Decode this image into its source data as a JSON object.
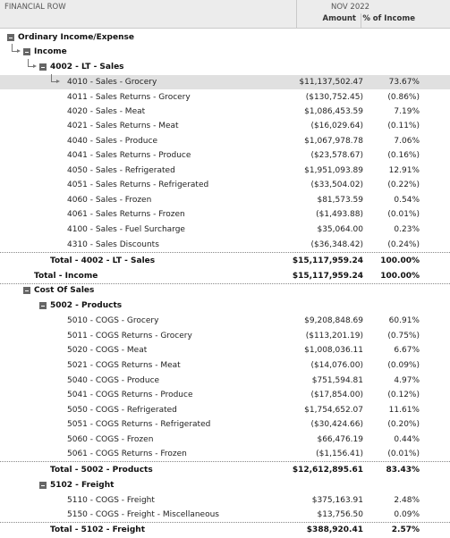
{
  "header": {
    "col_label": "FINANCIAL ROW",
    "period": "NOV 2022",
    "amount": "Amount",
    "percent": "% of Income"
  },
  "rows": [
    {
      "label": "Ordinary Income/Expense",
      "amount": "",
      "pct": ""
    },
    {
      "label": "Income",
      "amount": "",
      "pct": ""
    },
    {
      "label": "4002 - LT - Sales",
      "amount": "",
      "pct": ""
    },
    {
      "label": "4010 - Sales - Grocery",
      "amount": "$11,137,502.47",
      "pct": "73.67%"
    },
    {
      "label": "4011 - Sales Returns - Grocery",
      "amount": "($130,752.45)",
      "pct": "(0.86%)"
    },
    {
      "label": "4020 - Sales - Meat",
      "amount": "$1,086,453.59",
      "pct": "7.19%"
    },
    {
      "label": "4021 - Sales Returns - Meat",
      "amount": "($16,029.64)",
      "pct": "(0.11%)"
    },
    {
      "label": "4040 - Sales - Produce",
      "amount": "$1,067,978.78",
      "pct": "7.06%"
    },
    {
      "label": "4041 - Sales Returns - Produce",
      "amount": "($23,578.67)",
      "pct": "(0.16%)"
    },
    {
      "label": "4050 - Sales - Refrigerated",
      "amount": "$1,951,093.89",
      "pct": "12.91%"
    },
    {
      "label": "4051 - Sales Returns - Refrigerated",
      "amount": "($33,504.02)",
      "pct": "(0.22%)"
    },
    {
      "label": "4060 - Sales - Frozen",
      "amount": "$81,573.59",
      "pct": "0.54%"
    },
    {
      "label": "4061 - Sales Returns - Frozen",
      "amount": "($1,493.88)",
      "pct": "(0.01%)"
    },
    {
      "label": "4100 - Sales - Fuel Surcharge",
      "amount": "$35,064.00",
      "pct": "0.23%"
    },
    {
      "label": "4310 - Sales Discounts",
      "amount": "($36,348.42)",
      "pct": "(0.24%)"
    },
    {
      "label": "Total - 4002 - LT - Sales",
      "amount": "$15,117,959.24",
      "pct": "100.00%"
    },
    {
      "label": "Total - Income",
      "amount": "$15,117,959.24",
      "pct": "100.00%"
    },
    {
      "label": "Cost Of Sales",
      "amount": "",
      "pct": ""
    },
    {
      "label": "5002 - Products",
      "amount": "",
      "pct": ""
    },
    {
      "label": "5010 - COGS - Grocery",
      "amount": "$9,208,848.69",
      "pct": "60.91%"
    },
    {
      "label": "5011 - COGS Returns - Grocery",
      "amount": "($113,201.19)",
      "pct": "(0.75%)"
    },
    {
      "label": "5020 - COGS - Meat",
      "amount": "$1,008,036.11",
      "pct": "6.67%"
    },
    {
      "label": "5021 - COGS Returns - Meat",
      "amount": "($14,076.00)",
      "pct": "(0.09%)"
    },
    {
      "label": "5040 - COGS - Produce",
      "amount": "$751,594.81",
      "pct": "4.97%"
    },
    {
      "label": "5041 - COGS Returns - Produce",
      "amount": "($17,854.00)",
      "pct": "(0.12%)"
    },
    {
      "label": "5050 - COGS - Refrigerated",
      "amount": "$1,754,652.07",
      "pct": "11.61%"
    },
    {
      "label": "5051 - COGS Returns - Refrigerated",
      "amount": "($30,424.66)",
      "pct": "(0.20%)"
    },
    {
      "label": "5060 - COGS - Frozen",
      "amount": "$66,476.19",
      "pct": "0.44%"
    },
    {
      "label": "5061 - COGS Returns - Frozen",
      "amount": "($1,156.41)",
      "pct": "(0.01%)"
    },
    {
      "label": "Total - 5002 - Products",
      "amount": "$12,612,895.61",
      "pct": "83.43%"
    },
    {
      "label": "5102 - Freight",
      "amount": "",
      "pct": ""
    },
    {
      "label": "5110 - COGS - Freight",
      "amount": "$375,163.91",
      "pct": "2.48%"
    },
    {
      "label": "5150 - COGS - Freight - Miscellaneous",
      "amount": "$13,756.50",
      "pct": "0.09%"
    },
    {
      "label": "Total - 5102 - Freight",
      "amount": "$388,920.41",
      "pct": "2.57%"
    }
  ]
}
